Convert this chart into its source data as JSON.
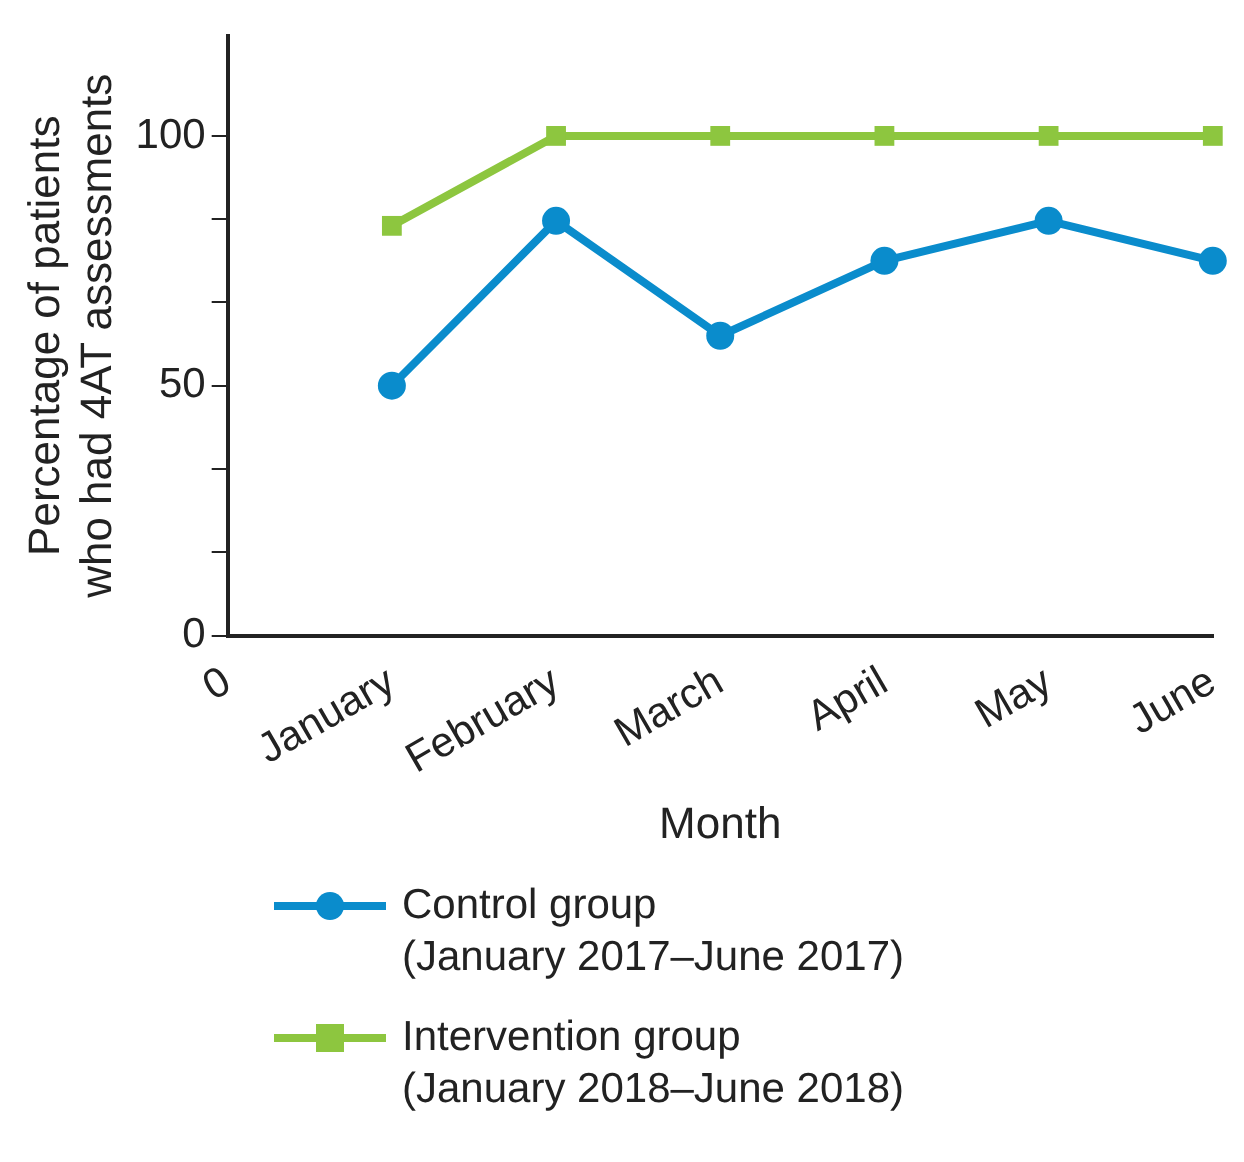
{
  "chart_data": {
    "type": "line",
    "xlabel": "Month",
    "ylabel": "Percentage of patients who had 4AT assessments",
    "categories": [
      "0",
      "January",
      "February",
      "March",
      "April",
      "May",
      "June"
    ],
    "series": [
      {
        "name": "Control group (January 2017–June 2017)",
        "color": "#0a8ccc",
        "marker": "circle",
        "values": [
          null,
          50,
          83,
          60,
          75,
          83,
          75
        ]
      },
      {
        "name": "Intervention group (January 2018–June 2018)",
        "color": "#8dc63f",
        "marker": "square",
        "values": [
          null,
          82,
          100,
          100,
          100,
          100,
          100
        ]
      }
    ],
    "ylim": [
      0,
      120
    ],
    "yticks": [
      0,
      {
        "value": 16.67,
        "label": null
      },
      {
        "value": 33.33,
        "label": null
      },
      50,
      {
        "value": 66.67,
        "label": null
      },
      {
        "value": 83.33,
        "label": null
      },
      100
    ],
    "grid": false,
    "legend": "bottom",
    "line_style": "solid"
  }
}
